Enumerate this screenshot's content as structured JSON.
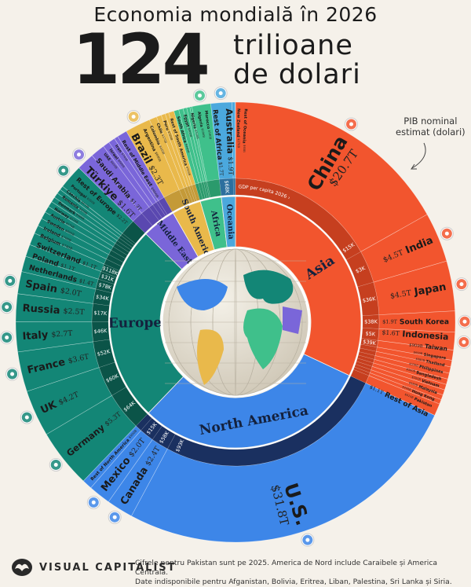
{
  "header": {
    "title": "Economia mondială în 2026",
    "big_number": "124",
    "unit_line1": "trilioane",
    "unit_line2": "de dolari"
  },
  "annotation": {
    "line1": "PIB nominal",
    "line2": "estimat (dolari)"
  },
  "footer": {
    "logo": "VISUAL CAPITALIST",
    "note_line1": "Cifrele pentru Pakistan sunt pe 2025. America de Nord include Caraibele și America Centrală.",
    "note_line2": "Date indisponibile pentru Afganistan, Bolivia, Eritrea, Liban, Palestina, Sri Lanka și Siria."
  },
  "chart_data": {
    "type": "sunburst",
    "title": "Economia mondială în 2026",
    "total_label": "124 trilioane de dolari",
    "outer_ring": "PIB nominal estimat (dolari)",
    "band_label": "GDP per capita 2026 ›",
    "continents": [
      {
        "name": "Asia",
        "color": "#f2552e",
        "band": "#c63f1f",
        "countries": [
          {
            "name": "China",
            "value": 20.7,
            "label": "$20.7T",
            "per_capita": "$15K"
          },
          {
            "name": "India",
            "value": 4.5,
            "label": "$4.5T",
            "per_capita": "$3K"
          },
          {
            "name": "Japan",
            "value": 4.5,
            "label": "$4.5T",
            "per_capita": "$36K"
          },
          {
            "name": "South Korea",
            "value": 1.9,
            "label": "$1.9T",
            "per_capita": "$38K"
          },
          {
            "name": "Indonesia",
            "value": 1.6,
            "label": "$1.6T",
            "per_capita": "$5K"
          },
          {
            "name": "Taiwan",
            "value": 0.91,
            "label": "$909B",
            "per_capita": "$39K"
          },
          {
            "name": "Singapore",
            "value": 0.6,
            "label": "$600B",
            "per_capita": ""
          },
          {
            "name": "Thailand",
            "value": 0.58,
            "label": "$580B",
            "per_capita": ""
          },
          {
            "name": "Philippines",
            "value": 0.53,
            "label": "$530B",
            "per_capita": ""
          },
          {
            "name": "Bangladesh",
            "value": 0.5,
            "label": "$500B",
            "per_capita": ""
          },
          {
            "name": "Vietnam",
            "value": 0.5,
            "label": "$500B",
            "per_capita": ""
          },
          {
            "name": "Malaysia",
            "value": 0.48,
            "label": "$480B",
            "per_capita": ""
          },
          {
            "name": "Hong Kong",
            "value": 0.44,
            "label": "$440B",
            "per_capita": ""
          },
          {
            "name": "Pakistan",
            "value": 0.41,
            "label": "$410B",
            "per_capita": ""
          },
          {
            "name": "Rest of Asia",
            "value": 1.1,
            "label": "$1.1T",
            "per_capita": ""
          }
        ]
      },
      {
        "name": "North America",
        "color": "#3d86e8",
        "band": "#1a3060",
        "countries": [
          {
            "name": "U.S.",
            "value": 31.8,
            "label": "$31.8T",
            "per_capita": "$93K"
          },
          {
            "name": "Canada",
            "value": 2.4,
            "label": "$2.4T",
            "per_capita": "$58K"
          },
          {
            "name": "Mexico",
            "value": 2.0,
            "label": "$2.0T",
            "per_capita": "$15K"
          },
          {
            "name": "Rest of North America",
            "value": 0.9,
            "label": "$900B",
            "per_capita": ""
          }
        ]
      },
      {
        "name": "Europe",
        "color": "#138676",
        "band": "#0b5448",
        "countries": [
          {
            "name": "Germany",
            "value": 5.3,
            "label": "$5.3T",
            "per_capita": "$64K"
          },
          {
            "name": "UK",
            "value": 4.2,
            "label": "$4.2T",
            "per_capita": "$60K"
          },
          {
            "name": "France",
            "value": 3.6,
            "label": "$3.6T",
            "per_capita": "$52K"
          },
          {
            "name": "Italy",
            "value": 2.7,
            "label": "$2.7T",
            "per_capita": "$46K"
          },
          {
            "name": "Russia",
            "value": 2.5,
            "label": "$2.5T",
            "per_capita": "$17K"
          },
          {
            "name": "Spain",
            "value": 2.0,
            "label": "$2.0T",
            "per_capita": "$34K"
          },
          {
            "name": "Netherlands",
            "value": 1.4,
            "label": "$1.4T",
            "per_capita": "$78K"
          },
          {
            "name": "Poland",
            "value": 1.1,
            "label": "$1.1T",
            "per_capita": "$31K"
          },
          {
            "name": "Switzerland",
            "value": 1.1,
            "label": "$1.1T",
            "per_capita": "$118K"
          },
          {
            "name": "Belgium",
            "value": 0.74,
            "label": "$740B",
            "per_capita": ""
          },
          {
            "name": "Ireland",
            "value": 0.7,
            "label": "$700B",
            "per_capita": ""
          },
          {
            "name": "Sweden",
            "value": 0.66,
            "label": "$660B",
            "per_capita": ""
          },
          {
            "name": "Austria",
            "value": 0.57,
            "label": "$570B",
            "per_capita": ""
          },
          {
            "name": "Norway",
            "value": 0.52,
            "label": "$520B",
            "per_capita": ""
          },
          {
            "name": "Denmark",
            "value": 0.46,
            "label": "$460B",
            "per_capita": ""
          },
          {
            "name": "Romania",
            "value": 0.45,
            "label": "$450B",
            "per_capita": ""
          },
          {
            "name": "Czechia",
            "value": 0.41,
            "label": "$410B",
            "per_capita": ""
          },
          {
            "name": "Portugal",
            "value": 0.35,
            "label": "$350B",
            "per_capita": ""
          },
          {
            "name": "Rest of Europe",
            "value": 2.2,
            "label": "$2.2T",
            "per_capita": ""
          }
        ]
      },
      {
        "name": "Middle East",
        "color": "#7a66d9",
        "band": "#5a48b0",
        "countries": [
          {
            "name": "Türkiye",
            "value": 1.6,
            "label": "$1.6T",
            "per_capita": ""
          },
          {
            "name": "Saudi Arabia",
            "value": 1.3,
            "label": "$1.3T",
            "per_capita": ""
          },
          {
            "name": "UAE",
            "value": 0.6,
            "label": "$600B",
            "per_capita": ""
          },
          {
            "name": "Israel",
            "value": 0.6,
            "label": "$600B",
            "per_capita": ""
          },
          {
            "name": "Iran",
            "value": 0.34,
            "label": "$340B",
            "per_capita": ""
          },
          {
            "name": "Rest of Middle East",
            "value": 0.9,
            "label": "$900B",
            "per_capita": ""
          }
        ]
      },
      {
        "name": "South America",
        "color": "#e9b94b",
        "band": "#c49a38",
        "countries": [
          {
            "name": "Brazil",
            "value": 2.3,
            "label": "$2.3T",
            "per_capita": ""
          },
          {
            "name": "Argentina",
            "value": 0.68,
            "label": "$680B",
            "per_capita": ""
          },
          {
            "name": "Colombia",
            "value": 0.44,
            "label": "$440B",
            "per_capita": ""
          },
          {
            "name": "Chile",
            "value": 0.37,
            "label": "$370B",
            "per_capita": ""
          },
          {
            "name": "Peru",
            "value": 0.32,
            "label": "$320B",
            "per_capita": ""
          },
          {
            "name": "Rest of South America",
            "value": 0.5,
            "label": "$500B",
            "per_capita": ""
          }
        ]
      },
      {
        "name": "Africa",
        "color": "#3fc08b",
        "band": "#2b9a6c",
        "countries": [
          {
            "name": "South Africa",
            "value": 0.44,
            "label": "$440B",
            "per_capita": ""
          },
          {
            "name": "Egypt",
            "value": 0.4,
            "label": "$400B",
            "per_capita": ""
          },
          {
            "name": "Nigeria",
            "value": 0.33,
            "label": "$330B",
            "per_capita": ""
          },
          {
            "name": "Algeria",
            "value": 0.29,
            "label": "$290B",
            "per_capita": ""
          },
          {
            "name": "Morocco",
            "value": 0.18,
            "label": "$180B",
            "per_capita": ""
          },
          {
            "name": "Rest of Africa",
            "value": 1.7,
            "label": "$1.7T",
            "per_capita": ""
          }
        ]
      },
      {
        "name": "Oceania",
        "color": "#4ba8dd",
        "band": "#2c6f9e",
        "countries": [
          {
            "name": "Australia",
            "value": 1.9,
            "label": "$1.9T",
            "per_capita": "$68K"
          },
          {
            "name": "New Zealand",
            "value": 0.27,
            "label": "$270B",
            "per_capita": ""
          },
          {
            "name": "Rest of Oceania",
            "value": 0.04,
            "label": "$40B",
            "per_capita": ""
          }
        ]
      }
    ]
  }
}
